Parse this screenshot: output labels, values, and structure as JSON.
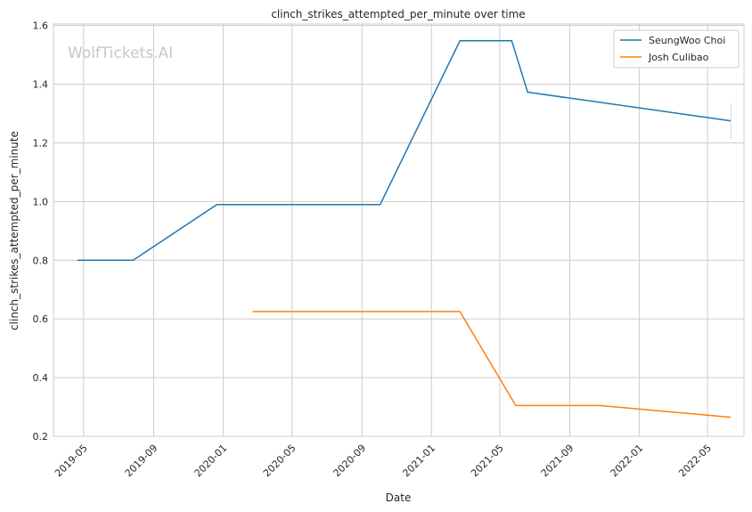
{
  "chart_data": {
    "type": "line",
    "title": "clinch_strikes_attempted_per_minute over time",
    "xlabel": "Date",
    "ylabel": "clinch_strikes_attempted_per_minute",
    "watermark": "WolfTickets.AI",
    "xlim": [
      "2019-03-09",
      "2022-07-04"
    ],
    "ylim": [
      0.2,
      1.605
    ],
    "grid": true,
    "legend_position": "top-right",
    "x_ticks": [
      "2019-05",
      "2019-09",
      "2020-01",
      "2020-05",
      "2020-09",
      "2021-01",
      "2021-05",
      "2021-09",
      "2022-01",
      "2022-05"
    ],
    "y_ticks": [
      "0.2",
      "0.4",
      "0.6",
      "0.8",
      "1.0",
      "1.2",
      "1.4",
      "1.6"
    ],
    "series": [
      {
        "name": "SeungWoo Choi",
        "color": "#1f77b4",
        "points": [
          {
            "x": "2019-04-20",
            "y": 0.8
          },
          {
            "x": "2019-07-27",
            "y": 0.8
          },
          {
            "x": "2019-12-21",
            "y": 0.99
          },
          {
            "x": "2020-10-03",
            "y": 0.99
          },
          {
            "x": "2021-02-20",
            "y": 1.548
          },
          {
            "x": "2021-05-22",
            "y": 1.548
          },
          {
            "x": "2021-06-19",
            "y": 1.373
          },
          {
            "x": "2022-06-11",
            "y": 1.275
          }
        ],
        "end_marker": {
          "x": "2022-06-11",
          "y_low": 1.215,
          "y_high": 1.335
        }
      },
      {
        "name": "Josh Culibao",
        "color": "#ff7f0e",
        "points": [
          {
            "x": "2020-02-22",
            "y": 0.625
          },
          {
            "x": "2021-02-20",
            "y": 0.625
          },
          {
            "x": "2021-05-29",
            "y": 0.305
          },
          {
            "x": "2021-10-23",
            "y": 0.305
          },
          {
            "x": "2022-06-11",
            "y": 0.265
          }
        ]
      }
    ]
  }
}
